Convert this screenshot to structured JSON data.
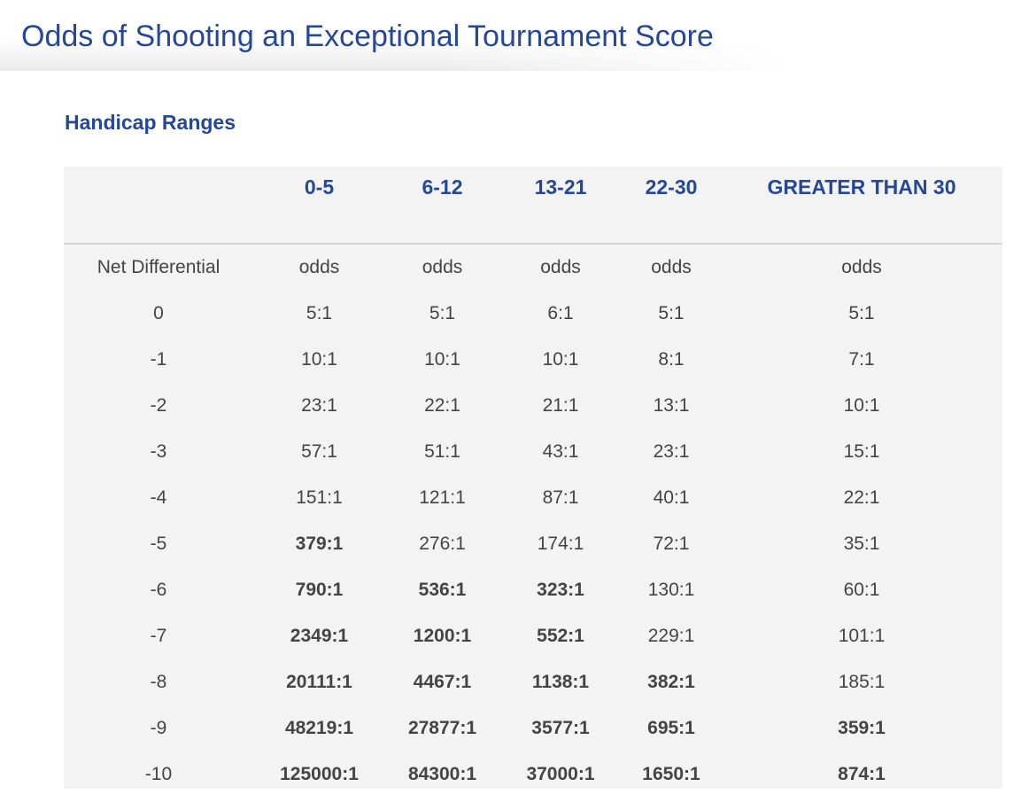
{
  "page": {
    "title": "Odds of Shooting an Exceptional Tournament Score",
    "section_heading": "Handicap Ranges"
  },
  "colors": {
    "heading_blue": "#244896",
    "table_bg": "#f3f3f3",
    "text": "#444444"
  },
  "table": {
    "columns": [
      "",
      "0-5",
      "6-12",
      "13-21",
      "22-30",
      "GREATER THAN 30"
    ],
    "subheader": [
      "Net Differential",
      "odds",
      "odds",
      "odds",
      "odds",
      "odds"
    ],
    "rows": [
      {
        "cells": [
          "0",
          "5:1",
          "5:1",
          "6:1",
          "5:1",
          "5:1"
        ],
        "bold": [
          false,
          false,
          false,
          false,
          false,
          false
        ]
      },
      {
        "cells": [
          "-1",
          "10:1",
          "10:1",
          "10:1",
          "8:1",
          "7:1"
        ],
        "bold": [
          false,
          false,
          false,
          false,
          false,
          false
        ]
      },
      {
        "cells": [
          "-2",
          "23:1",
          "22:1",
          "21:1",
          "13:1",
          "10:1"
        ],
        "bold": [
          false,
          false,
          false,
          false,
          false,
          false
        ]
      },
      {
        "cells": [
          "-3",
          "57:1",
          "51:1",
          "43:1",
          "23:1",
          "15:1"
        ],
        "bold": [
          false,
          false,
          false,
          false,
          false,
          false
        ]
      },
      {
        "cells": [
          "-4",
          "151:1",
          "121:1",
          "87:1",
          "40:1",
          "22:1"
        ],
        "bold": [
          false,
          false,
          false,
          false,
          false,
          false
        ]
      },
      {
        "cells": [
          "-5",
          "379:1",
          "276:1",
          "174:1",
          "72:1",
          "35:1"
        ],
        "bold": [
          false,
          true,
          false,
          false,
          false,
          false
        ]
      },
      {
        "cells": [
          "-6",
          "790:1",
          "536:1",
          "323:1",
          "130:1",
          "60:1"
        ],
        "bold": [
          false,
          true,
          true,
          true,
          false,
          false
        ]
      },
      {
        "cells": [
          "-7",
          "2349:1",
          "1200:1",
          "552:1",
          "229:1",
          "101:1"
        ],
        "bold": [
          false,
          true,
          true,
          true,
          false,
          false
        ]
      },
      {
        "cells": [
          "-8",
          "20111:1",
          "4467:1",
          "1138:1",
          "382:1",
          "185:1"
        ],
        "bold": [
          false,
          true,
          true,
          true,
          true,
          false
        ]
      },
      {
        "cells": [
          "-9",
          "48219:1",
          "27877:1",
          "3577:1",
          "695:1",
          "359:1"
        ],
        "bold": [
          false,
          true,
          true,
          true,
          true,
          true
        ]
      },
      {
        "cells": [
          "-10",
          "125000:1",
          "84300:1",
          "37000:1",
          "1650:1",
          "874:1"
        ],
        "bold": [
          false,
          true,
          true,
          true,
          true,
          true
        ]
      }
    ]
  }
}
